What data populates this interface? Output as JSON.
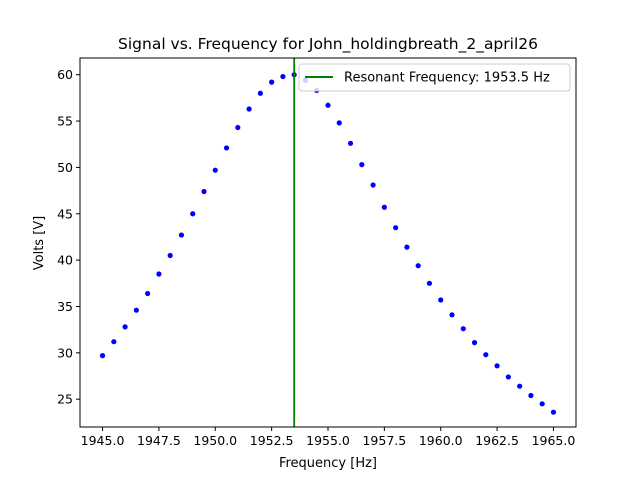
{
  "chart_data": {
    "type": "scatter",
    "title": "Signal vs. Frequency for John_holdingbreath_2_april26",
    "xlabel": "Frequency [Hz]",
    "ylabel": "Volts [V]",
    "xlim": [
      1944.0,
      1966.0
    ],
    "ylim": [
      22.0,
      61.8
    ],
    "x_ticks": [
      1945.0,
      1947.5,
      1950.0,
      1952.5,
      1955.0,
      1957.5,
      1960.0,
      1962.5,
      1965.0
    ],
    "x_tick_labels": [
      "1945.0",
      "1947.5",
      "1950.0",
      "1952.5",
      "1955.0",
      "1957.5",
      "1960.0",
      "1962.5",
      "1965.0"
    ],
    "y_ticks": [
      25,
      30,
      35,
      40,
      45,
      50,
      55,
      60
    ],
    "y_tick_labels": [
      "25",
      "30",
      "35",
      "40",
      "45",
      "50",
      "55",
      "60"
    ],
    "grid": false,
    "legend_position": "top-right",
    "series": [
      {
        "color": "#0000ff",
        "marker": "dot",
        "x": [
          1945.0,
          1945.5,
          1946.0,
          1946.5,
          1947.0,
          1947.5,
          1948.0,
          1948.5,
          1949.0,
          1949.5,
          1950.0,
          1950.5,
          1951.0,
          1951.5,
          1952.0,
          1952.5,
          1953.0,
          1953.5,
          1954.0,
          1954.5,
          1955.0,
          1955.5,
          1956.0,
          1956.5,
          1957.0,
          1957.5,
          1958.0,
          1958.5,
          1959.0,
          1959.5,
          1960.0,
          1960.5,
          1961.0,
          1961.5,
          1962.0,
          1962.5,
          1963.0,
          1963.5,
          1964.0,
          1964.5,
          1965.0
        ],
        "y": [
          29.7,
          31.2,
          32.8,
          34.6,
          36.4,
          38.5,
          40.5,
          42.7,
          45.0,
          47.4,
          49.7,
          52.1,
          54.3,
          56.3,
          58.0,
          59.2,
          59.8,
          60.0,
          59.4,
          58.3,
          56.7,
          54.8,
          52.6,
          50.3,
          48.1,
          45.7,
          43.5,
          41.4,
          39.4,
          37.5,
          35.7,
          34.1,
          32.6,
          31.1,
          29.8,
          28.6,
          27.4,
          26.4,
          25.4,
          24.5,
          23.6
        ]
      }
    ],
    "vlines": [
      {
        "name": "Resonant Frequency: 1953.5 Hz",
        "x": 1953.5,
        "color": "#008000"
      }
    ]
  }
}
